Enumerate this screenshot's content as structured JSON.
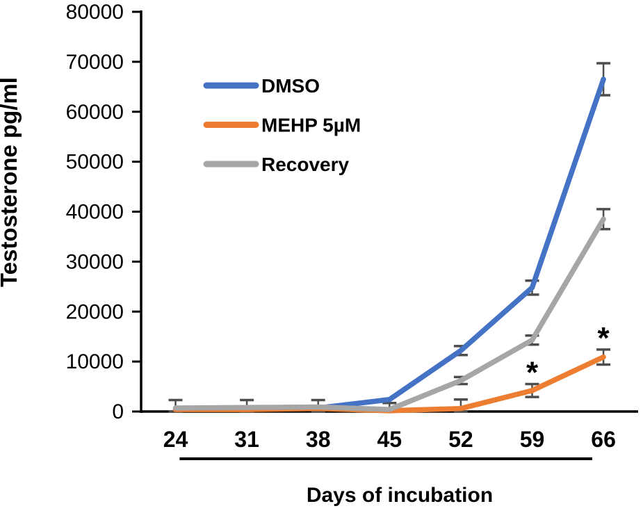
{
  "chart_data": {
    "type": "line",
    "title": "",
    "xlabel": "Days of incubation",
    "ylabel": "Testosterone pg/ml",
    "x": [
      24,
      31,
      38,
      45,
      52,
      59,
      66
    ],
    "ylim": [
      0,
      80000
    ],
    "yticks": [
      0,
      10000,
      20000,
      30000,
      40000,
      50000,
      60000,
      70000,
      80000
    ],
    "grid": false,
    "legend_position": "upper-left-inside",
    "axis_color": "#000000",
    "error_color": "#4d4d4d",
    "series": [
      {
        "name": "DMSO",
        "color": "#4472C4",
        "values": [
          600,
          500,
          700,
          2400,
          12200,
          24800,
          66500
        ],
        "errors": [
          0,
          0,
          0,
          0,
          900,
          1400,
          3200
        ]
      },
      {
        "name": "MEHP 5µM",
        "color": "#ED7D31",
        "values": [
          400,
          400,
          600,
          150,
          600,
          4200,
          10900
        ],
        "errors": [
          0,
          0,
          0,
          0,
          1800,
          1300,
          1500
        ]
      },
      {
        "name": "Recovery",
        "color": "#A6A6A6",
        "values": [
          700,
          800,
          900,
          400,
          6200,
          14300,
          38500
        ],
        "errors": [
          1600,
          1500,
          1400,
          1300,
          700,
          900,
          2000
        ]
      }
    ],
    "annotations": [
      {
        "type": "significance",
        "series": "MEHP 5µM",
        "x": 59,
        "label": "*"
      },
      {
        "type": "significance",
        "series": "MEHP 5µM",
        "x": 66,
        "label": "*"
      }
    ],
    "treatment_line": {
      "x_start_day": 24.4,
      "x_end_day": 64.9
    }
  }
}
